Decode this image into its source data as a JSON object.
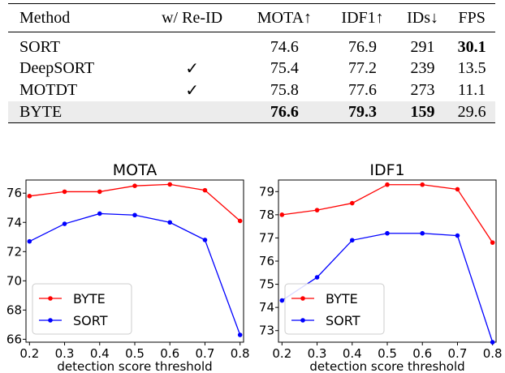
{
  "table": {
    "headers": [
      "Method",
      "w/ Re-ID",
      "MOTA↑",
      "IDF1↑",
      "IDs↓",
      "FPS"
    ],
    "rows": [
      {
        "cells": [
          "SORT",
          "",
          "74.6",
          "76.9",
          "291",
          "30.1"
        ],
        "bold": [
          false,
          false,
          false,
          false,
          false,
          true
        ],
        "highlight": false
      },
      {
        "cells": [
          "DeepSORT",
          "✓",
          "75.4",
          "77.2",
          "239",
          "13.5"
        ],
        "bold": [
          false,
          false,
          false,
          false,
          false,
          false
        ],
        "highlight": false
      },
      {
        "cells": [
          "MOTDT",
          "✓",
          "75.8",
          "77.6",
          "273",
          "11.1"
        ],
        "bold": [
          false,
          false,
          false,
          false,
          false,
          false
        ],
        "highlight": false
      },
      {
        "cells": [
          "BYTE",
          "",
          "76.6",
          "79.3",
          "159",
          "29.6"
        ],
        "bold": [
          false,
          false,
          true,
          true,
          true,
          false
        ],
        "highlight": true
      }
    ],
    "highlight_color": "#ececec"
  },
  "chart_data": [
    {
      "type": "line",
      "title": "MOTA",
      "xlabel": "detection score threshold",
      "ylabel": "",
      "x": [
        0.2,
        0.3,
        0.4,
        0.5,
        0.6,
        0.7,
        0.8
      ],
      "xticks": [
        "0.2",
        "0.3",
        "0.4",
        "0.5",
        "0.6",
        "0.7",
        "0.8"
      ],
      "yticks": [
        66,
        68,
        70,
        72,
        74,
        76
      ],
      "xlim": [
        0.19,
        0.81
      ],
      "ylim": [
        65.8,
        76.9
      ],
      "grid": false,
      "legend_position": "lower-left",
      "series": [
        {
          "name": "BYTE",
          "color": "#ff0000",
          "values": [
            75.8,
            76.1,
            76.1,
            76.5,
            76.6,
            76.2,
            74.1
          ]
        },
        {
          "name": "SORT",
          "color": "#0000ff",
          "values": [
            72.7,
            73.9,
            74.6,
            74.5,
            74.0,
            72.8,
            66.3
          ]
        }
      ]
    },
    {
      "type": "line",
      "title": "IDF1",
      "xlabel": "detection score threshold",
      "ylabel": "",
      "x": [
        0.2,
        0.3,
        0.4,
        0.5,
        0.6,
        0.7,
        0.8
      ],
      "xticks": [
        "0.2",
        "0.3",
        "0.4",
        "0.5",
        "0.6",
        "0.7",
        "0.8"
      ],
      "yticks": [
        73,
        74,
        75,
        76,
        77,
        78,
        79
      ],
      "xlim": [
        0.19,
        0.81
      ],
      "ylim": [
        72.5,
        79.5
      ],
      "grid": false,
      "legend_position": "lower-left",
      "series": [
        {
          "name": "BYTE",
          "color": "#ff0000",
          "values": [
            78.0,
            78.2,
            78.5,
            79.3,
            79.3,
            79.1,
            76.8
          ]
        },
        {
          "name": "SORT",
          "color": "#0000ff",
          "values": [
            74.3,
            75.3,
            76.9,
            77.2,
            77.2,
            77.1,
            72.5
          ]
        }
      ]
    }
  ]
}
